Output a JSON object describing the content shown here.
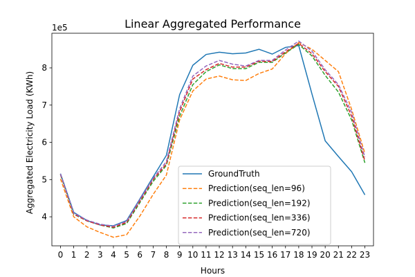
{
  "chart_data": {
    "type": "line",
    "title": "Linear Aggregated Performance",
    "xlabel": "Hours",
    "ylabel": "Aggregated Electricity Load (KWh)",
    "y_offset_label": "1e5",
    "x": [
      0,
      1,
      2,
      3,
      4,
      5,
      6,
      7,
      8,
      9,
      10,
      11,
      12,
      13,
      14,
      15,
      16,
      17,
      18,
      19,
      20,
      21,
      22,
      23
    ],
    "xlim": [
      -0.65,
      23.65
    ],
    "ylim": [
      3.22,
      8.93
    ],
    "yticks": [
      4,
      5,
      6,
      7,
      8
    ],
    "grid": false,
    "legend_position": "lower-center",
    "series": [
      {
        "name": "GroundTruth",
        "color": "#1f77b4",
        "dash": "solid",
        "values": [
          5.16,
          4.12,
          3.9,
          3.78,
          3.76,
          3.9,
          4.48,
          5.07,
          5.65,
          7.28,
          8.07,
          8.36,
          8.42,
          8.38,
          8.4,
          8.5,
          8.37,
          8.55,
          8.6,
          7.3,
          6.04,
          5.62,
          5.21,
          4.59
        ]
      },
      {
        "name": "Prediction(seq_len=96)",
        "color": "#ff7f0e",
        "dash": "dashed",
        "values": [
          5.02,
          4.0,
          3.73,
          3.58,
          3.45,
          3.52,
          4.02,
          4.6,
          5.12,
          6.6,
          7.38,
          7.7,
          7.78,
          7.68,
          7.66,
          7.85,
          7.97,
          8.38,
          8.68,
          8.5,
          8.2,
          7.9,
          6.88,
          5.7
        ]
      },
      {
        "name": "Prediction(seq_len=192)",
        "color": "#2ca02c",
        "dash": "dashed",
        "values": [
          5.13,
          4.07,
          3.89,
          3.78,
          3.7,
          3.82,
          4.38,
          4.95,
          5.38,
          6.7,
          7.55,
          7.9,
          8.08,
          7.98,
          7.98,
          8.15,
          8.15,
          8.4,
          8.63,
          8.32,
          7.8,
          7.35,
          6.6,
          5.45
        ]
      },
      {
        "name": "Prediction(seq_len=336)",
        "color": "#d62728",
        "dash": "dashed",
        "values": [
          5.14,
          4.08,
          3.89,
          3.78,
          3.72,
          3.85,
          4.42,
          5.0,
          5.42,
          6.82,
          7.7,
          7.95,
          8.12,
          8.02,
          8.02,
          8.18,
          8.17,
          8.43,
          8.66,
          8.38,
          7.9,
          7.5,
          6.7,
          5.5
        ]
      },
      {
        "name": "Prediction(seq_len=720)",
        "color": "#9467bd",
        "dash": "dashed",
        "values": [
          5.15,
          4.1,
          3.91,
          3.8,
          3.75,
          3.88,
          4.46,
          5.03,
          5.48,
          6.9,
          7.78,
          8.05,
          8.2,
          8.1,
          8.05,
          8.2,
          8.2,
          8.48,
          8.72,
          8.45,
          7.95,
          7.55,
          6.8,
          5.6
        ]
      }
    ]
  }
}
